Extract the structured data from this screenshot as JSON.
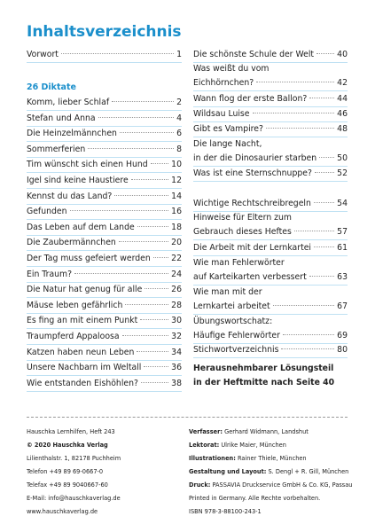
{
  "header": {
    "title": "Inhaltsverzeichnis"
  },
  "left": {
    "intro": {
      "lines": [
        "Vorwort"
      ],
      "page": 1
    },
    "section": "26 Diktate",
    "entries": [
      {
        "lines": [
          "Komm, lieber Schlaf"
        ],
        "page": 2
      },
      {
        "lines": [
          "Stefan und Anna"
        ],
        "page": 4
      },
      {
        "lines": [
          "Die Heinzelmännchen"
        ],
        "page": 6
      },
      {
        "lines": [
          "Sommerferien"
        ],
        "page": 8
      },
      {
        "lines": [
          "Tim wünscht sich einen Hund"
        ],
        "page": 10
      },
      {
        "lines": [
          "Igel sind keine Haustiere"
        ],
        "page": 12
      },
      {
        "lines": [
          "Kennst du das Land?"
        ],
        "page": 14
      },
      {
        "lines": [
          "Gefunden"
        ],
        "page": 16
      },
      {
        "lines": [
          "Das Leben auf dem Lande"
        ],
        "page": 18
      },
      {
        "lines": [
          "Die Zaubermännchen"
        ],
        "page": 20
      },
      {
        "lines": [
          "Der Tag muss gefeiert werden"
        ],
        "page": 22
      },
      {
        "lines": [
          "Ein Traum?"
        ],
        "page": 24
      },
      {
        "lines": [
          "Die Natur hat genug für alle"
        ],
        "page": 26
      },
      {
        "lines": [
          "Mäuse leben gefährlich"
        ],
        "page": 28
      },
      {
        "lines": [
          "Es fing an mit einem Punkt"
        ],
        "page": 30
      },
      {
        "lines": [
          "Traumpferd Appaloosa"
        ],
        "page": 32
      },
      {
        "lines": [
          "Katzen haben neun Leben"
        ],
        "page": 34
      },
      {
        "lines": [
          "Unsere Nachbarn im Weltall"
        ],
        "page": 36
      },
      {
        "lines": [
          "Wie entstanden Eishöhlen?"
        ],
        "page": 38
      }
    ]
  },
  "right": {
    "entries": [
      {
        "lines": [
          "Die schönste Schule der Welt"
        ],
        "page": 40
      },
      {
        "lines": [
          "Was weißt du vom",
          "Eichhörnchen?"
        ],
        "page": 42
      },
      {
        "lines": [
          "Wann flog der erste Ballon?"
        ],
        "page": 44
      },
      {
        "lines": [
          "Wildsau Luise"
        ],
        "page": 46
      },
      {
        "lines": [
          "Gibt es Vampire?"
        ],
        "page": 48
      },
      {
        "lines": [
          "Die lange Nacht,",
          "in der die Dinosaurier starben"
        ],
        "page": 50
      },
      {
        "lines": [
          "Was ist eine Sternschnuppe?"
        ],
        "page": 52
      },
      {
        "lines": [
          "Wichtige Rechtschreibregeln"
        ],
        "page": 54
      },
      {
        "lines": [
          "Hinweise für Eltern zum",
          "Gebrauch dieses Heftes"
        ],
        "page": 57
      },
      {
        "lines": [
          "Die Arbeit mit der Lernkartei"
        ],
        "page": 61
      },
      {
        "lines": [
          "Wie man Fehlerwörter",
          "auf Karteikarten verbessert"
        ],
        "page": 63
      },
      {
        "lines": [
          "Wie man mit der",
          "Lernkartei arbeitet"
        ],
        "page": 67
      },
      {
        "lines": [
          "Übungswortschatz:",
          "Häufige Fehlerwörter"
        ],
        "page": 69
      },
      {
        "lines": [
          "Stichwortverzeichnis"
        ],
        "page": 80
      }
    ],
    "note": [
      "Herausnehmbarer Lösungsteil",
      "in der Heftmitte nach Seite 40"
    ]
  },
  "footer": {
    "left": [
      "Hauschka Lernhilfen, Heft 243",
      "© 2020 Hauschka Verlag",
      "Lilienthalstr. 1, 82178 Puchheim",
      "Telefon +49 89 69-0667-0",
      "Telefax +49 89 9040667-60",
      "E-Mail: info@hauschkaverlag.de",
      "www.hauschkaverlag.de"
    ],
    "right": [
      {
        "label": "Verfasser:",
        "text": "Gerhard Widmann, Landshut"
      },
      {
        "label": "Lektorat:",
        "text": "Ulrike Maier, München"
      },
      {
        "label": "Illustrationen:",
        "text": "Rainer Thiele, München"
      },
      {
        "label": "Gestaltung und Layout:",
        "text": "S. Dengl + R. Gill, München"
      },
      {
        "label": "Druck:",
        "text": "PASSAVIA Druckservice GmbH & Co. KG, Passau"
      },
      {
        "text": "Printed in Germany. Alle Rechte vorbehalten."
      },
      {
        "text": "ISBN 978-3-88100-243-1"
      }
    ]
  }
}
